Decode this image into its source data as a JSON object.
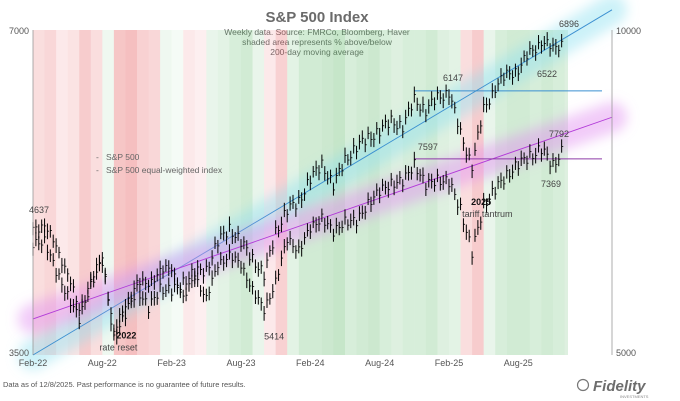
{
  "header": {
    "title": "S&P 500 Index",
    "subtitle_lines": [
      "Weekly data.  Source: FMRCo, Bloomberg, Haver",
      "shaded area represents % above/below",
      "200-day moving average"
    ]
  },
  "chart_data": {
    "type": "line",
    "title": "S&P 500 Index",
    "x": {
      "start": "2022-02",
      "end": "2025-12",
      "tick_labels": [
        "Feb-22",
        "Aug-22",
        "Feb-23",
        "Aug-23",
        "Feb-24",
        "Aug-24",
        "Feb-25",
        "Aug-25"
      ]
    },
    "y_left": {
      "scale": "log",
      "range": [
        3500,
        7000
      ],
      "tick_labels": [
        "7000",
        "3500"
      ]
    },
    "y_right": {
      "scale": "log",
      "range": [
        5000,
        10000
      ],
      "tick_labels": [
        "10000",
        "5000"
      ]
    },
    "legend": {
      "placement": "middle-left",
      "entries": [
        "S&P 500",
        "S&P 500 equal-weighted index"
      ]
    },
    "series": [
      {
        "name": "S&P 500",
        "color": "#000000",
        "axis": "left",
        "points": [
          [
            "2022-02",
            4400
          ],
          [
            "2022-03",
            4500
          ],
          [
            "2022-04",
            4150
          ],
          [
            "2022-05",
            4000
          ],
          [
            "2022-06",
            3750
          ],
          [
            "2022-07",
            4100
          ],
          [
            "2022-08",
            4250
          ],
          [
            "2022-09",
            3640
          ],
          [
            "2022-10",
            3800
          ],
          [
            "2022-11",
            4050
          ],
          [
            "2022-12",
            3850
          ],
          [
            "2023-01",
            4050
          ],
          [
            "2023-02",
            4000
          ],
          [
            "2023-03",
            4100
          ],
          [
            "2023-04",
            4170
          ],
          [
            "2023-05",
            4200
          ],
          [
            "2023-06",
            4450
          ],
          [
            "2023-07",
            4590
          ],
          [
            "2023-08",
            4450
          ],
          [
            "2023-09",
            4300
          ],
          [
            "2023-10",
            4150
          ],
          [
            "2023-11",
            4550
          ],
          [
            "2023-12",
            4770
          ],
          [
            "2024-01",
            4850
          ],
          [
            "2024-02",
            5100
          ],
          [
            "2024-03",
            5250
          ],
          [
            "2024-04",
            5030
          ],
          [
            "2024-05",
            5300
          ],
          [
            "2024-06",
            5460
          ],
          [
            "2024-07",
            5550
          ],
          [
            "2024-08",
            5650
          ],
          [
            "2024-09",
            5760
          ],
          [
            "2024-10",
            5700
          ],
          [
            "2024-11",
            6030
          ],
          [
            "2024-12",
            5900
          ],
          [
            "2025-01",
            6050
          ],
          [
            "2025-02",
            6140
          ],
          [
            "2025-03",
            5600
          ],
          [
            "2025-04",
            5250
          ],
          [
            "2025-05",
            5900
          ],
          [
            "2025-06",
            6200
          ],
          [
            "2025-07",
            6350
          ],
          [
            "2025-08",
            6450
          ],
          [
            "2025-09",
            6650
          ],
          [
            "2025-10",
            6850
          ],
          [
            "2025-11",
            6700
          ],
          [
            "2025-12",
            6870
          ]
        ]
      },
      {
        "name": "S&P 500 equal-weighted index",
        "color": "#000000",
        "axis": "right",
        "points": [
          [
            "2022-02",
            6500
          ],
          [
            "2022-03",
            6650
          ],
          [
            "2022-04",
            6250
          ],
          [
            "2022-05",
            6000
          ],
          [
            "2022-06",
            5450
          ],
          [
            "2022-07",
            5900
          ],
          [
            "2022-08",
            6100
          ],
          [
            "2022-09",
            5300
          ],
          [
            "2022-10",
            5500
          ],
          [
            "2022-11",
            5900
          ],
          [
            "2022-12",
            5750
          ],
          [
            "2023-01",
            6050
          ],
          [
            "2023-02",
            5950
          ],
          [
            "2023-03",
            5700
          ],
          [
            "2023-04",
            5850
          ],
          [
            "2023-05",
            5700
          ],
          [
            "2023-06",
            6000
          ],
          [
            "2023-07",
            6250
          ],
          [
            "2023-08",
            6000
          ],
          [
            "2023-09",
            5800
          ],
          [
            "2023-10",
            5450
          ],
          [
            "2023-11",
            5900
          ],
          [
            "2023-12",
            6350
          ],
          [
            "2024-01",
            6300
          ],
          [
            "2024-02",
            6500
          ],
          [
            "2024-03",
            6750
          ],
          [
            "2024-04",
            6450
          ],
          [
            "2024-05",
            6700
          ],
          [
            "2024-06",
            6600
          ],
          [
            "2024-07",
            6950
          ],
          [
            "2024-08",
            7050
          ],
          [
            "2024-09",
            7250
          ],
          [
            "2024-10",
            7200
          ],
          [
            "2024-11",
            7550
          ],
          [
            "2024-12",
            7150
          ],
          [
            "2025-01",
            7300
          ],
          [
            "2025-02",
            7200
          ],
          [
            "2025-03",
            6850
          ],
          [
            "2025-04",
            6200
          ],
          [
            "2025-05",
            6900
          ],
          [
            "2025-06",
            7100
          ],
          [
            "2025-07",
            7350
          ],
          [
            "2025-08",
            7500
          ],
          [
            "2025-09",
            7650
          ],
          [
            "2025-10",
            7750
          ],
          [
            "2025-11",
            7500
          ],
          [
            "2025-12",
            7790
          ]
        ]
      }
    ],
    "trend_lines": [
      {
        "name": "S&P 500 trend",
        "color": "#3a8fd0",
        "axis": "left",
        "from": [
          "2022-02",
          3500
        ],
        "to": [
          "2025-12",
          6880
        ]
      },
      {
        "name": "Equal-weighted trend",
        "color": "#b23ad8",
        "axis": "left",
        "from": [
          "2022-02",
          3780
        ],
        "to": [
          "2025-12",
          5610
        ]
      }
    ],
    "reference_lines": [
      {
        "color": "#3a8fd0",
        "axis": "left",
        "y": 6147,
        "from": "2024-11",
        "to": "2025-12"
      },
      {
        "color": "#8e3aa8",
        "axis": "right",
        "y": 7597,
        "from": "2024-11",
        "to": "2025-12"
      }
    ],
    "annotations": [
      {
        "text": "6896",
        "date": "2025-11",
        "value": 6896,
        "axis": "left"
      },
      {
        "text": "6522",
        "date": "2025-11",
        "value": 6522,
        "axis": "left"
      },
      {
        "text": "6147",
        "date": "2025-02",
        "value": 6147,
        "axis": "left"
      },
      {
        "text": "7792",
        "date": "2025-11",
        "value": 7792,
        "axis": "right"
      },
      {
        "text": "7597",
        "date": "2024-12",
        "value": 7597,
        "axis": "right"
      },
      {
        "text": "7369",
        "date": "2025-11",
        "value": 7369,
        "axis": "right"
      },
      {
        "text": "4637",
        "date": "2022-02",
        "value": 4637,
        "axis": "left"
      },
      {
        "text": "5414",
        "date": "2023-10",
        "value": 5414,
        "axis": "right"
      },
      {
        "text": "2022",
        "date": "2022-10",
        "value": null,
        "axis": "left",
        "bold": true
      },
      {
        "text": "rate reset",
        "date": "2022-10",
        "value": null,
        "axis": "left",
        "bold": false
      },
      {
        "text": "2025",
        "date": "2025-04",
        "value": null,
        "axis": "left",
        "bold": true
      },
      {
        "text": "tariff tantrum",
        "date": "2025-04",
        "value": null,
        "axis": "left",
        "bold": false
      }
    ],
    "shading": {
      "description": "% above/below 200-day moving average",
      "colors": {
        "above": "#39a845",
        "below": "#e0393c"
      },
      "monthly_intensity": [
        -0.4,
        -0.5,
        -0.2,
        -0.3,
        -0.7,
        -0.4,
        0.1,
        -0.8,
        -0.9,
        -0.6,
        -0.5,
        0.1,
        0.0,
        -0.2,
        -0.1,
        0.2,
        0.3,
        0.5,
        0.6,
        0.2,
        -0.2,
        -0.6,
        0.3,
        0.6,
        0.6,
        0.7,
        0.8,
        0.5,
        0.6,
        0.7,
        0.5,
        0.4,
        0.5,
        0.5,
        0.6,
        0.4,
        0.3,
        -0.4,
        -0.7,
        0.2,
        0.5,
        0.6,
        0.6,
        0.5,
        0.6,
        0.5,
        0.4
      ]
    }
  },
  "footer": {
    "disclaimer": "Data as of 12/8/2025. Past performance is no guarantee of future results.",
    "brand": "Fidelity",
    "brand_tagline": "INVESTMENTS"
  }
}
